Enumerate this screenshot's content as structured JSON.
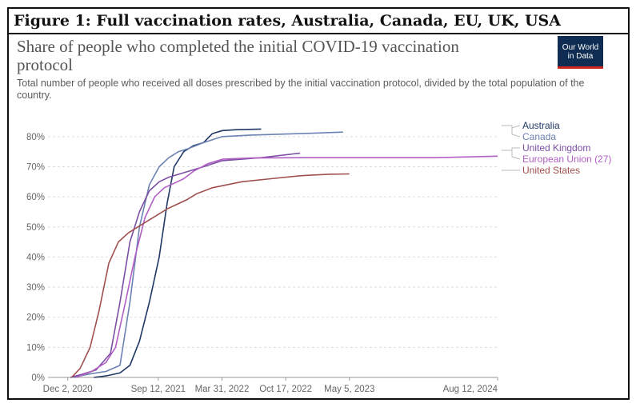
{
  "figure": {
    "title": "Figure 1: Full vaccination rates, Australia, Canada, EU, UK, USA"
  },
  "logo": {
    "line1": "Our World",
    "line2": "in Data"
  },
  "chart_data": {
    "type": "line",
    "title": "Share of people who completed the initial COVID-19 vaccination protocol",
    "subtitle": "Total number of people who received all doses prescribed by the initial vaccination protocol, divided by the total population of the country.",
    "xlabel": "",
    "ylabel": "",
    "x_ticks": [
      "Dec 2, 2020",
      "Sep 12, 2021",
      "Mar 31, 2022",
      "Oct 17, 2022",
      "May 5, 2023",
      "Aug 12, 2024"
    ],
    "x_range": [
      "2020-10-01",
      "2024-08-12"
    ],
    "y_ticks": [
      "0%",
      "10%",
      "20%",
      "30%",
      "40%",
      "50%",
      "60%",
      "70%",
      "80%"
    ],
    "ylim": [
      0,
      85
    ],
    "grid": true,
    "legend_position": "right",
    "series": [
      {
        "name": "Australia",
        "color": "#1f3864",
        "points": [
          [
            "2021-02-22",
            0
          ],
          [
            "2021-04-01",
            0.5
          ],
          [
            "2021-05-15",
            1.5
          ],
          [
            "2021-06-15",
            4
          ],
          [
            "2021-07-15",
            12
          ],
          [
            "2021-08-15",
            25
          ],
          [
            "2021-09-15",
            40
          ],
          [
            "2021-10-10",
            58
          ],
          [
            "2021-11-01",
            70
          ],
          [
            "2021-12-01",
            75
          ],
          [
            "2022-01-01",
            77
          ],
          [
            "2022-02-01",
            78
          ],
          [
            "2022-03-01",
            81
          ],
          [
            "2022-04-01",
            82
          ],
          [
            "2022-05-15",
            82.3
          ],
          [
            "2022-08-01",
            82.5
          ]
        ]
      },
      {
        "name": "Canada",
        "color": "#6b82b2",
        "points": [
          [
            "2020-12-20",
            0
          ],
          [
            "2021-02-01",
            1
          ],
          [
            "2021-04-01",
            2
          ],
          [
            "2021-05-15",
            4
          ],
          [
            "2021-06-15",
            25
          ],
          [
            "2021-07-15",
            50
          ],
          [
            "2021-08-15",
            64
          ],
          [
            "2021-09-15",
            70
          ],
          [
            "2021-10-15",
            73
          ],
          [
            "2021-11-15",
            75
          ],
          [
            "2021-12-15",
            76
          ],
          [
            "2022-02-01",
            78
          ],
          [
            "2022-04-01",
            80
          ],
          [
            "2022-07-01",
            80.5
          ],
          [
            "2022-12-01",
            81
          ],
          [
            "2023-04-15",
            81.5
          ]
        ]
      },
      {
        "name": "United Kingdom",
        "color": "#7a4fa3",
        "points": [
          [
            "2020-12-10",
            0
          ],
          [
            "2021-01-15",
            1
          ],
          [
            "2021-03-01",
            2.5
          ],
          [
            "2021-04-15",
            8
          ],
          [
            "2021-05-15",
            25
          ],
          [
            "2021-06-15",
            45
          ],
          [
            "2021-07-15",
            55
          ],
          [
            "2021-08-15",
            62
          ],
          [
            "2021-09-15",
            65
          ],
          [
            "2021-10-15",
            66.5
          ],
          [
            "2021-12-01",
            68
          ],
          [
            "2022-02-01",
            70
          ],
          [
            "2022-04-01",
            72
          ],
          [
            "2022-06-01",
            72.5
          ],
          [
            "2022-08-01",
            73
          ],
          [
            "2022-12-01",
            74.5
          ]
        ]
      },
      {
        "name": "European Union (27)",
        "color": "#b25fc4",
        "points": [
          [
            "2020-12-27",
            0
          ],
          [
            "2021-02-15",
            2
          ],
          [
            "2021-04-01",
            5
          ],
          [
            "2021-05-01",
            10
          ],
          [
            "2021-06-01",
            25
          ],
          [
            "2021-07-01",
            40
          ],
          [
            "2021-08-01",
            53
          ],
          [
            "2021-09-01",
            60
          ],
          [
            "2021-10-01",
            63
          ],
          [
            "2021-11-01",
            64.5
          ],
          [
            "2021-12-01",
            66
          ],
          [
            "2022-01-01",
            68.5
          ],
          [
            "2022-02-15",
            71
          ],
          [
            "2022-04-01",
            72.5
          ],
          [
            "2022-07-01",
            72.9
          ],
          [
            "2023-01-01",
            73
          ],
          [
            "2024-02-01",
            73
          ],
          [
            "2024-08-12",
            73.5
          ]
        ]
      },
      {
        "name": "United States",
        "color": "#a0504f",
        "points": [
          [
            "2020-12-14",
            0
          ],
          [
            "2021-01-10",
            3
          ],
          [
            "2021-02-10",
            10
          ],
          [
            "2021-03-10",
            22
          ],
          [
            "2021-04-10",
            38
          ],
          [
            "2021-05-10",
            45
          ],
          [
            "2021-06-10",
            48
          ],
          [
            "2021-07-10",
            50
          ],
          [
            "2021-08-10",
            52
          ],
          [
            "2021-09-10",
            54
          ],
          [
            "2021-10-10",
            56
          ],
          [
            "2021-11-10",
            57.5
          ],
          [
            "2021-12-10",
            59
          ],
          [
            "2022-01-10",
            61
          ],
          [
            "2022-03-01",
            63
          ],
          [
            "2022-06-01",
            65
          ],
          [
            "2022-09-01",
            66
          ],
          [
            "2022-12-01",
            67
          ],
          [
            "2023-03-01",
            67.5
          ],
          [
            "2023-05-05",
            67.6
          ]
        ]
      }
    ]
  }
}
